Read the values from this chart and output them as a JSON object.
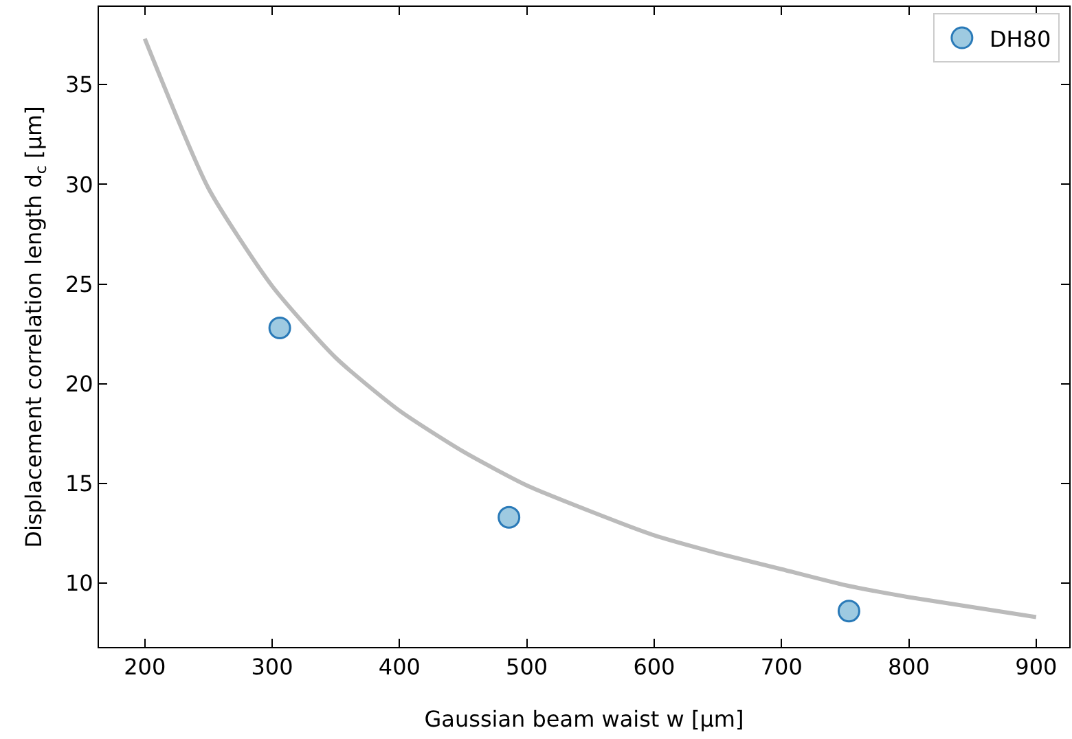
{
  "chart_data": {
    "type": "scatter",
    "xlabel": "Gaussian beam waist w [μm]",
    "ylabel": "Displacement correlation length d$_{c}$ [μm]",
    "xlim": [
      164,
      926
    ],
    "ylim": [
      6.8,
      38.9
    ],
    "xticks": [
      200,
      300,
      400,
      500,
      600,
      700,
      800,
      900
    ],
    "yticks": [
      10,
      15,
      20,
      25,
      30,
      35
    ],
    "grid": false,
    "legend": "top right",
    "series": [
      {
        "type": "line",
        "color": "#bbbbbb",
        "marker": "none",
        "line_style": "solid",
        "x": [
          200,
          250,
          300,
          350,
          400,
          450,
          500,
          550,
          600,
          650,
          700,
          750,
          800,
          850,
          900
        ],
        "values": [
          37.3,
          29.8,
          24.9,
          21.3,
          18.65,
          16.6,
          14.9,
          13.6,
          12.4,
          11.5,
          10.7,
          9.9,
          9.3,
          8.8,
          8.3
        ]
      },
      {
        "type": "scatter",
        "name": "DH80",
        "color": "#9ecae1",
        "marker": "circle",
        "x": [
          306,
          486,
          753
        ],
        "values": [
          22.8,
          13.3,
          8.6
        ]
      }
    ]
  }
}
